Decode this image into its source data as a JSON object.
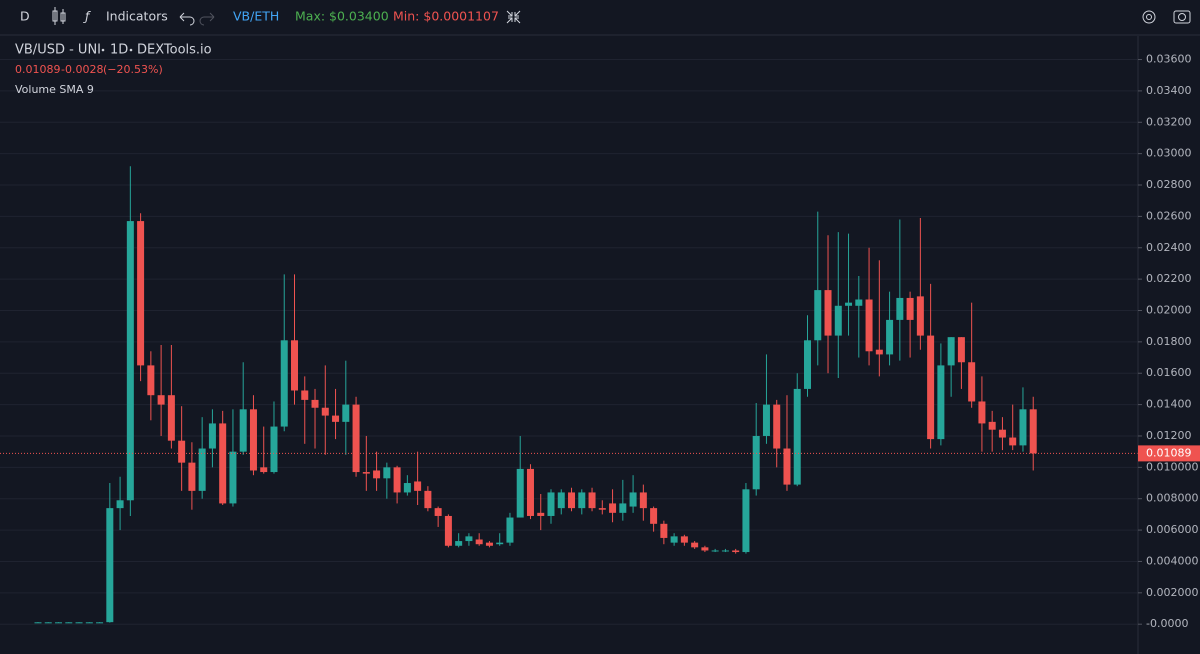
{
  "toolbar": {
    "interval": "D",
    "indicators": "Indicators",
    "pair": "VB/ETH",
    "max": "Max: $0.03400",
    "min": "Min: $0.0001107"
  },
  "chart_data": {
    "type": "candlestick",
    "title": "VB/USD - UNI",
    "interval": "1D",
    "source": "DEXTools.io",
    "last_value": "0.01089",
    "change": "-0.0028",
    "change_pct": "(−20.53%)",
    "indicator": "Volume SMA 9",
    "up_color": "#26a69a",
    "down_color": "#ef5350",
    "ylim": [
      -0.0019,
      0.0375
    ],
    "yticks": [
      {
        "value": 0,
        "label": "-0.0000"
      },
      {
        "value": 0.002,
        "label": "0.002000"
      },
      {
        "value": 0.004,
        "label": "0.004000"
      },
      {
        "value": 0.006,
        "label": "0.006000"
      },
      {
        "value": 0.008,
        "label": "0.008000"
      },
      {
        "value": 0.01,
        "label": "0.010000"
      },
      {
        "value": 0.012,
        "label": "0.01200"
      },
      {
        "value": 0.014,
        "label": "0.01400"
      },
      {
        "value": 0.016,
        "label": "0.01600"
      },
      {
        "value": 0.018,
        "label": "0.01800"
      },
      {
        "value": 0.02,
        "label": "0.02000"
      },
      {
        "value": 0.022,
        "label": "0.02200"
      },
      {
        "value": 0.024,
        "label": "0.02400"
      },
      {
        "value": 0.026,
        "label": "0.02600"
      },
      {
        "value": 0.028,
        "label": "0.02800"
      },
      {
        "value": 0.03,
        "label": "0.03000"
      },
      {
        "value": 0.032,
        "label": "0.03200"
      },
      {
        "value": 0.034,
        "label": "0.03400"
      },
      {
        "value": 0.036,
        "label": "0.03600"
      }
    ],
    "grid": true,
    "last_price": {
      "value": 0.01089,
      "label": "0.01089"
    },
    "open": [
      0.00012,
      0.00012,
      0.00012,
      0.00012,
      0.00012,
      0.00012,
      0.00012,
      0.00013,
      0.0074,
      0.0079,
      0.0257,
      0.0165,
      0.0146,
      0.0146,
      0.0117,
      0.0103,
      0.0085,
      0.0112,
      0.0128,
      0.0077,
      0.011,
      0.0137,
      0.01,
      0.0097,
      0.0126,
      0.0181,
      0.0149,
      0.0143,
      0.0138,
      0.0133,
      0.0129,
      0.014,
      0.0097,
      0.0098,
      0.0093,
      0.01,
      0.0084,
      0.0091,
      0.0085,
      0.0074,
      0.0069,
      0.005,
      0.0053,
      0.0054,
      0.0052,
      0.0051,
      0.0052,
      0.0068,
      0.0099,
      0.0071,
      0.0069,
      0.0074,
      0.0084,
      0.0074,
      0.0084,
      0.0074,
      0.0077,
      0.0071,
      0.0075,
      0.0084,
      0.0074,
      0.0064,
      0.0052,
      0.0056,
      0.0052,
      0.0049,
      0.0047,
      0.0047,
      0.0047,
      0.0046,
      0.0086,
      0.012,
      0.014,
      0.0112,
      0.0089,
      0.015,
      0.0181,
      0.0213,
      0.0184,
      0.0203,
      0.0203,
      0.0207,
      0.0175,
      0.0172,
      0.0194,
      0.0208,
      0.0209,
      0.0184,
      0.0118,
      0.0165,
      0.0183,
      0.0167,
      0.0142,
      0.0129,
      0.0124,
      0.0119,
      0.0114,
      0.0137
    ],
    "high": [
      0.00013,
      0.00013,
      0.00013,
      0.00013,
      0.00013,
      0.00013,
      0.00013,
      0.009,
      0.0094,
      0.0292,
      0.0262,
      0.0174,
      0.0178,
      0.0178,
      0.0139,
      0.0116,
      0.0132,
      0.0137,
      0.0136,
      0.0137,
      0.0167,
      0.0146,
      0.0126,
      0.0142,
      0.0223,
      0.0223,
      0.0158,
      0.015,
      0.0165,
      0.015,
      0.0168,
      0.0145,
      0.012,
      0.011,
      0.0103,
      0.0101,
      0.0095,
      0.011,
      0.0088,
      0.0075,
      0.007,
      0.0058,
      0.0058,
      0.0058,
      0.0053,
      0.0058,
      0.0071,
      0.012,
      0.0102,
      0.0083,
      0.0086,
      0.0086,
      0.0087,
      0.0086,
      0.0087,
      0.0079,
      0.0086,
      0.0092,
      0.0095,
      0.0089,
      0.0075,
      0.0066,
      0.0058,
      0.0057,
      0.0053,
      0.005,
      0.0048,
      0.0048,
      0.0048,
      0.009,
      0.0141,
      0.0172,
      0.0143,
      0.0146,
      0.016,
      0.0197,
      0.0263,
      0.0248,
      0.025,
      0.0249,
      0.0222,
      0.024,
      0.0232,
      0.0212,
      0.0258,
      0.0212,
      0.0259,
      0.0217,
      0.0179,
      0.0183,
      0.0183,
      0.0205,
      0.0158,
      0.0136,
      0.0132,
      0.014,
      0.0151,
      0.0145
    ],
    "low": [
      0.00011,
      0.00011,
      0.00011,
      0.00011,
      0.00011,
      0.00011,
      0.00011,
      0.0001,
      0.006,
      0.0069,
      0.0155,
      0.013,
      0.012,
      0.0112,
      0.0085,
      0.0073,
      0.008,
      0.01,
      0.0076,
      0.0075,
      0.0108,
      0.0095,
      0.0096,
      0.0096,
      0.0123,
      0.014,
      0.0115,
      0.0112,
      0.0108,
      0.0118,
      0.0108,
      0.0094,
      0.0085,
      0.0085,
      0.008,
      0.0077,
      0.0082,
      0.0076,
      0.0072,
      0.0062,
      0.0049,
      0.0049,
      0.005,
      0.005,
      0.0049,
      0.005,
      0.005,
      0.0068,
      0.0067,
      0.006,
      0.0064,
      0.007,
      0.0072,
      0.007,
      0.0072,
      0.007,
      0.0065,
      0.0066,
      0.0071,
      0.0066,
      0.0059,
      0.0051,
      0.005,
      0.005,
      0.0048,
      0.0046,
      0.0046,
      0.0046,
      0.0045,
      0.0045,
      0.0082,
      0.0115,
      0.01,
      0.0085,
      0.0088,
      0.0145,
      0.0165,
      0.016,
      0.0157,
      0.0184,
      0.017,
      0.0165,
      0.0158,
      0.0165,
      0.0168,
      0.017,
      0.0175,
      0.0112,
      0.0114,
      0.0145,
      0.015,
      0.0138,
      0.011,
      0.011,
      0.0111,
      0.0111,
      0.011,
      0.0098
    ],
    "close": [
      0.00012,
      0.00012,
      0.00012,
      0.00012,
      0.00012,
      0.00012,
      0.00012,
      0.0074,
      0.0079,
      0.0257,
      0.0165,
      0.0146,
      0.014,
      0.0117,
      0.0103,
      0.0085,
      0.0112,
      0.0128,
      0.0077,
      0.011,
      0.0137,
      0.0098,
      0.0097,
      0.0126,
      0.0181,
      0.0149,
      0.0143,
      0.0138,
      0.0133,
      0.0129,
      0.014,
      0.0097,
      0.0096,
      0.0093,
      0.01,
      0.0084,
      0.009,
      0.0085,
      0.0074,
      0.0069,
      0.005,
      0.0053,
      0.0056,
      0.0051,
      0.005,
      0.0052,
      0.0068,
      0.0099,
      0.0069,
      0.0069,
      0.0084,
      0.0084,
      0.0074,
      0.0084,
      0.0074,
      0.0073,
      0.0071,
      0.0077,
      0.0084,
      0.0074,
      0.0064,
      0.0055,
      0.0056,
      0.0052,
      0.0049,
      0.0047,
      0.0047,
      0.0047,
      0.0046,
      0.0086,
      0.012,
      0.014,
      0.0112,
      0.0089,
      0.015,
      0.0181,
      0.0213,
      0.0184,
      0.0203,
      0.0205,
      0.0207,
      0.0174,
      0.0172,
      0.0194,
      0.0208,
      0.0194,
      0.0184,
      0.0118,
      0.0165,
      0.0183,
      0.0167,
      0.0142,
      0.0128,
      0.0124,
      0.0119,
      0.0114,
      0.0137,
      0.01089
    ]
  }
}
